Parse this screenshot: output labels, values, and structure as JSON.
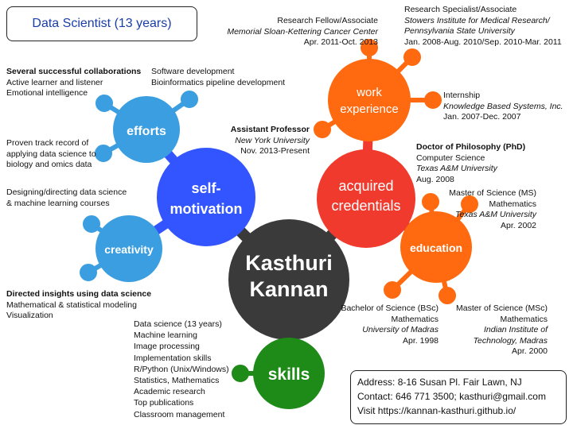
{
  "title": "Data Scientist (13 years)",
  "nodes": {
    "center": {
      "lines": [
        "Kasthuri",
        "Kannan"
      ],
      "color": "#3a3a3a"
    },
    "self_motivation": {
      "lines": [
        "self-",
        "motivation"
      ],
      "color": "#3355ff"
    },
    "acquired_credentials": {
      "lines": [
        "acquired",
        "credentials"
      ],
      "color": "#f03a2e"
    },
    "efforts": {
      "label": "efforts",
      "color": "#3a9ee0"
    },
    "creativity": {
      "label": "creativity",
      "color": "#3a9ee0"
    },
    "work_experience": {
      "lines": [
        "work",
        "experience"
      ],
      "color": "#ff6a10"
    },
    "education": {
      "label": "education",
      "color": "#ff6a10"
    },
    "skills": {
      "label": "skills",
      "color": "#1e8a18"
    }
  },
  "efforts_text": {
    "collab_heading": "Several successful collaborations",
    "collab_lines": [
      "Active learner and listener",
      "Emotional intelligence"
    ],
    "dev_lines": [
      "Software development",
      "Bioinformatics pipeline development"
    ],
    "track_lines": [
      "Proven track record of",
      "applying data science to",
      "biology and omics data"
    ]
  },
  "creativity_text": {
    "courses_lines": [
      "Designing/directing data science",
      "& machine learning courses"
    ],
    "insights_heading": "Directed insights using data science",
    "insights_lines": [
      "Mathematical & statistical modeling",
      "Visualization"
    ]
  },
  "work": {
    "mskcc": {
      "title": "Research Fellow/Associate",
      "org": "Memorial Sloan-Kettering Cancer Center",
      "dates": "Apr. 2011-Oct. 2013"
    },
    "stowers": {
      "title": "Research Specialist/Associate",
      "org1": "Stowers Institute for Medical Research/",
      "org2": "Pennsylvania State University",
      "dates": "Jan. 2008-Aug. 2010/Sep. 2010-Mar. 2011"
    },
    "internship": {
      "title": "Internship",
      "org": "Knowledge Based Systems, Inc.",
      "dates": "Jan. 2007-Dec. 2007"
    },
    "professor": {
      "title": "Assistant Professor",
      "org": "New York University",
      "dates": "Nov. 2013-Present"
    }
  },
  "education": {
    "phd": {
      "title": "Doctor of Philosophy (PhD)",
      "field": "Computer Science",
      "school": "Texas A&M University",
      "date": "Aug. 2008"
    },
    "ms": {
      "title": "Master of Science (MS)",
      "field": "Mathematics",
      "school": "Texas A&M University",
      "date": "Apr. 2002"
    },
    "bsc": {
      "title": "Bachelor of Science (BSc)",
      "field": "Mathematics",
      "school": "University of Madras",
      "date": "Apr. 1998"
    },
    "msc": {
      "title": "Master of Science (MSc)",
      "field": "Mathematics",
      "school1": "Indian Institute of",
      "school2": "Technology, Madras",
      "date": "Apr. 2000"
    }
  },
  "skills_list": [
    "Data science (13 years)",
    "Machine learning",
    "Image processing",
    "Implementation skills",
    "R/Python (Unix/Windows)",
    "Statistics, Mathematics",
    "Academic research",
    "Top publications",
    "Classroom management"
  ],
  "contact": {
    "address": "Address: 8-16 Susan Pl. Fair Lawn, NJ",
    "phone_email": "Contact: 646 771 3500; kasthuri@gmail.com",
    "website": "Visit https://kannan-kasthuri.github.io/"
  }
}
